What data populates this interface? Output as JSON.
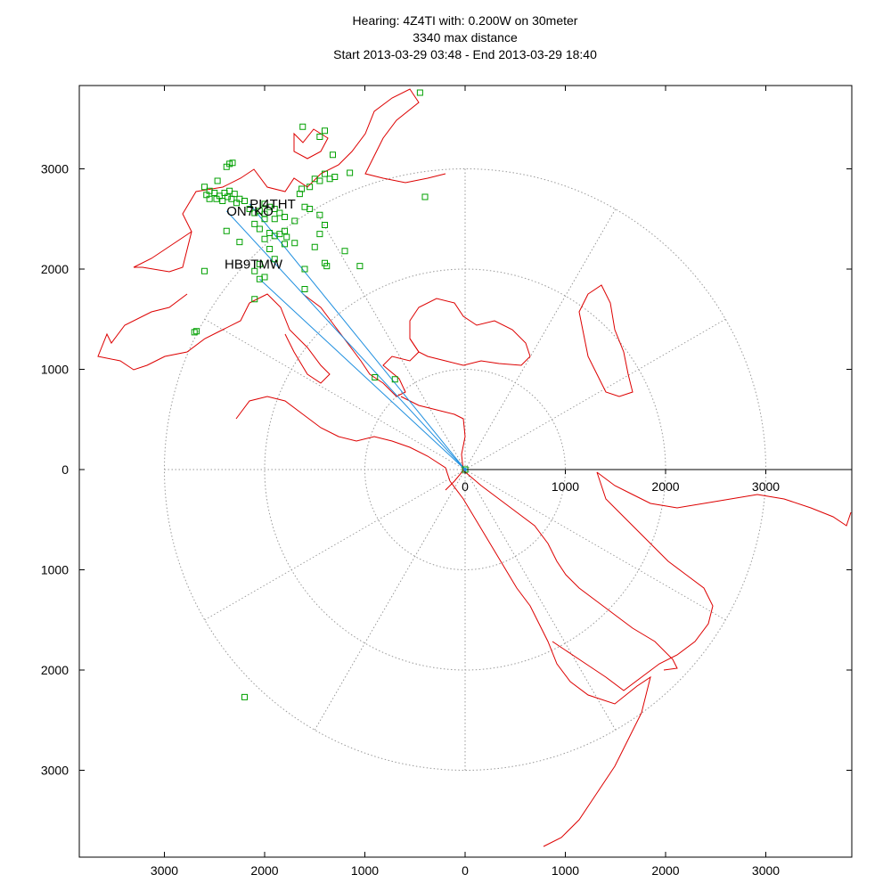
{
  "title": {
    "line1": "Hearing: 4Z4TI with: 0.200W on 30meter",
    "line2": "3340 max distance",
    "line3": "Start 2013-03-29 03:48 - End 2013-03-29 18:40"
  },
  "chart_data": {
    "type": "scatter",
    "projection": "azimuthal-equidistant",
    "center_station": "4Z4TI",
    "units": "km",
    "xlim": [
      -3800,
      3800
    ],
    "ylim": [
      -3850,
      3850
    ],
    "x_ticks": [
      3000,
      2000,
      1000,
      0,
      1000,
      2000,
      3000
    ],
    "x_tick_values": [
      -3000,
      -2000,
      -1000,
      0,
      1000,
      2000,
      3000
    ],
    "y_ticks": [
      3000,
      2000,
      1000,
      0,
      1000,
      2000,
      3000
    ],
    "y_tick_values": [
      3000,
      2000,
      1000,
      0,
      -1000,
      -2000,
      -3000
    ],
    "inner_axis_ticks": [
      "0",
      "1000",
      "2000",
      "3000"
    ],
    "inner_axis_tick_values": [
      0,
      1000,
      2000,
      3000
    ],
    "range_rings": [
      1000,
      2000,
      3000
    ],
    "radial_line_angles_deg": [
      0,
      30,
      60,
      90,
      120,
      150,
      180,
      210,
      240,
      270,
      300,
      330
    ],
    "grid": true,
    "colors": {
      "map": "#dd0000",
      "spots": "#00a000",
      "paths": "#1f8fdf",
      "grid": "#999999",
      "axis": "#000000"
    },
    "labeled_stations": [
      {
        "call": "PI4THT",
        "x": -2150,
        "y": 2650
      },
      {
        "call": "ON7KO",
        "x": -2380,
        "y": 2580
      },
      {
        "call": "HB9TMW",
        "x": -2400,
        "y": 2050
      }
    ],
    "paths": [
      {
        "to": "PI4THT",
        "x": -2150,
        "y": 2650
      },
      {
        "to": "ON7KO",
        "x": -2380,
        "y": 2580
      },
      {
        "to": "HB9TMW",
        "x": -2050,
        "y": 1900
      }
    ],
    "spots": [
      [
        -2600,
        2820
      ],
      [
        -2550,
        2780
      ],
      [
        -2500,
        2760
      ],
      [
        -2480,
        2700
      ],
      [
        -2450,
        2730
      ],
      [
        -2420,
        2680
      ],
      [
        -2400,
        2760
      ],
      [
        -2370,
        2720
      ],
      [
        -2350,
        2780
      ],
      [
        -2330,
        2700
      ],
      [
        -2300,
        2750
      ],
      [
        -2280,
        2660
      ],
      [
        -2550,
        2700
      ],
      [
        -2580,
        2740
      ],
      [
        -2470,
        2880
      ],
      [
        -2380,
        3020
      ],
      [
        -2350,
        3050
      ],
      [
        -2320,
        3060
      ],
      [
        -2250,
        2700
      ],
      [
        -2200,
        2680
      ],
      [
        -2150,
        2600
      ],
      [
        -2100,
        2560
      ],
      [
        -2050,
        2580
      ],
      [
        -2000,
        2650
      ],
      [
        -1950,
        2620
      ],
      [
        -1900,
        2600
      ],
      [
        -1850,
        2560
      ],
      [
        -1800,
        2520
      ],
      [
        -1900,
        2500
      ],
      [
        -2000,
        2550
      ],
      [
        -2100,
        2450
      ],
      [
        -2050,
        2400
      ],
      [
        -1950,
        2360
      ],
      [
        -1900,
        2330
      ],
      [
        -1800,
        2380
      ],
      [
        -1700,
        2480
      ],
      [
        -1600,
        2620
      ],
      [
        -1550,
        2600
      ],
      [
        -1650,
        2750
      ],
      [
        -1630,
        2800
      ],
      [
        -1550,
        2820
      ],
      [
        -1500,
        2900
      ],
      [
        -1450,
        2880
      ],
      [
        -1400,
        2950
      ],
      [
        -1350,
        2900
      ],
      [
        -1300,
        2920
      ],
      [
        -1150,
        2960
      ],
      [
        -1320,
        3140
      ],
      [
        -1400,
        3380
      ],
      [
        -1450,
        3320
      ],
      [
        -1620,
        3420
      ],
      [
        -2000,
        2300
      ],
      [
        -1950,
        2200
      ],
      [
        -1900,
        2100
      ],
      [
        -2050,
        2050
      ],
      [
        -2100,
        1980
      ],
      [
        -2000,
        1920
      ],
      [
        -2050,
        1900
      ],
      [
        -2250,
        2270
      ],
      [
        -2380,
        2380
      ],
      [
        -2600,
        1980
      ],
      [
        -2100,
        1700
      ],
      [
        -1800,
        2250
      ],
      [
        -1700,
        2260
      ],
      [
        -1500,
        2220
      ],
      [
        -1450,
        2350
      ],
      [
        -1450,
        2540
      ],
      [
        -1400,
        2440
      ],
      [
        -1200,
        2180
      ],
      [
        -1050,
        2030
      ],
      [
        -1400,
        2060
      ],
      [
        -1380,
        2030
      ],
      [
        -1600,
        2000
      ],
      [
        -1600,
        1800
      ],
      [
        -400,
        2720
      ],
      [
        -450,
        3760
      ],
      [
        -2700,
        1370
      ],
      [
        -2680,
        1380
      ],
      [
        -700,
        900
      ],
      [
        -900,
        920
      ],
      [
        -2200,
        -2270
      ],
      [
        -1780,
        2320
      ],
      [
        -1850,
        2350
      ],
      [
        -2000,
        2500
      ],
      [
        0,
        0
      ]
    ]
  }
}
